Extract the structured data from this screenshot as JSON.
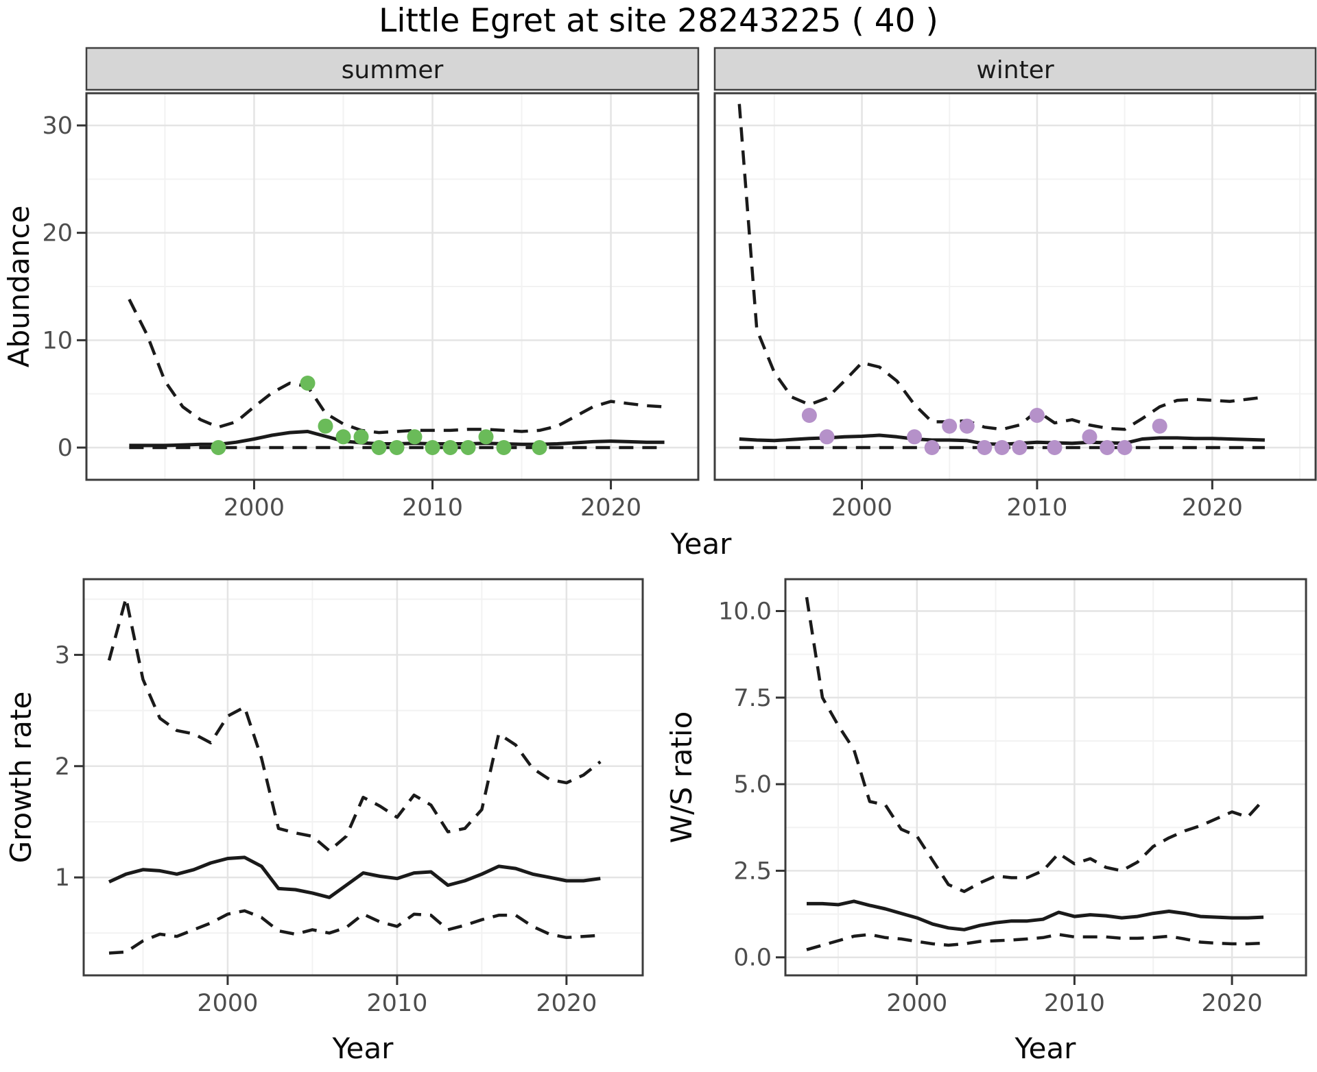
{
  "title": "Little Egret at site 28243225 ( 40 )",
  "colors": {
    "background": "#ffffff",
    "panel_bg": "#ffffff",
    "grid_major": "#e4e4e4",
    "grid_minor": "#f2f2f2",
    "panel_border": "#3c3c3c",
    "strip_bg": "#d6d6d6",
    "strip_border": "#404040",
    "line": "#1a1a1a",
    "tick": "#333333",
    "tick_label": "#4d4d4d",
    "summer_point": "#6abb59",
    "winter_point": "#b591c9"
  },
  "chart_data": [
    {
      "id": "abundance-summer",
      "type": "line",
      "facet_label": "summer",
      "ylabel": "Abundance",
      "xlabel": "Year",
      "xlim": [
        1990.6,
        2024.9
      ],
      "ylim": [
        -3,
        33
      ],
      "x_ticks": [
        2000,
        2010,
        2020
      ],
      "x_tick_labels": [
        "2000",
        "2010",
        "2020"
      ],
      "x_minor": [
        1995,
        2005,
        2015,
        2025
      ],
      "y_ticks": [
        0,
        10,
        20,
        30
      ],
      "y_tick_labels": [
        "0",
        "10",
        "20",
        "30"
      ],
      "y_minor": [
        5,
        15,
        25
      ],
      "grid": true,
      "legend": "none",
      "years": [
        1993,
        1994,
        1995,
        1996,
        1997,
        1998,
        1999,
        2000,
        2001,
        2002,
        2003,
        2004,
        2005,
        2006,
        2007,
        2008,
        2009,
        2010,
        2011,
        2012,
        2013,
        2014,
        2015,
        2016,
        2017,
        2018,
        2019,
        2020,
        2021,
        2022,
        2023
      ],
      "series": [
        {
          "name": "upper-95ci",
          "style": "dashed",
          "values": [
            13.8,
            10.5,
            6.2,
            3.8,
            2.6,
            1.9,
            2.4,
            3.8,
            5.1,
            6.0,
            5.7,
            3.2,
            2.2,
            1.6,
            1.4,
            1.5,
            1.6,
            1.6,
            1.6,
            1.7,
            1.7,
            1.6,
            1.5,
            1.6,
            2.0,
            2.9,
            3.8,
            4.3,
            4.1,
            3.9,
            3.8
          ]
        },
        {
          "name": "lower-95ci",
          "style": "dashed",
          "values": [
            0,
            0,
            0,
            0,
            0,
            0,
            0,
            0,
            0,
            0,
            0,
            0,
            0,
            0,
            0,
            0,
            0,
            0,
            0,
            0,
            0,
            0,
            0,
            0,
            0,
            0,
            0,
            0,
            0,
            0,
            0
          ]
        },
        {
          "name": "median",
          "style": "solid",
          "values": [
            0.2,
            0.2,
            0.2,
            0.25,
            0.3,
            0.3,
            0.5,
            0.8,
            1.15,
            1.4,
            1.5,
            1.05,
            0.6,
            0.45,
            0.35,
            0.35,
            0.4,
            0.35,
            0.35,
            0.35,
            0.4,
            0.35,
            0.3,
            0.3,
            0.35,
            0.45,
            0.55,
            0.6,
            0.55,
            0.5,
            0.5
          ]
        }
      ],
      "observations": {
        "name": "summer-counts",
        "color_key": "summer_point",
        "years": [
          1998,
          2003,
          2004,
          2005,
          2006,
          2007,
          2008,
          2009,
          2010,
          2011,
          2012,
          2013,
          2014,
          2016
        ],
        "values": [
          0,
          6,
          2,
          1,
          1,
          0,
          0,
          1,
          0,
          0,
          0,
          1,
          0,
          0
        ]
      }
    },
    {
      "id": "abundance-winter",
      "type": "line",
      "facet_label": "winter",
      "ylabel": "Abundance",
      "xlabel": "Year",
      "xlim": [
        1991.6,
        2025.9
      ],
      "ylim": [
        -3,
        33
      ],
      "x_ticks": [
        2000,
        2010,
        2020
      ],
      "x_tick_labels": [
        "2000",
        "2010",
        "2020"
      ],
      "x_minor": [
        1995,
        2005,
        2015,
        2025
      ],
      "y_ticks": [
        0,
        10,
        20,
        30
      ],
      "y_tick_labels": [
        "0",
        "10",
        "20",
        "30"
      ],
      "y_minor": [
        5,
        15,
        25
      ],
      "grid": true,
      "legend": "none",
      "years": [
        1993,
        1994,
        1995,
        1996,
        1997,
        1998,
        1999,
        2000,
        2001,
        2002,
        2003,
        2004,
        2005,
        2006,
        2007,
        2008,
        2009,
        2010,
        2011,
        2012,
        2013,
        2014,
        2015,
        2016,
        2017,
        2018,
        2019,
        2020,
        2021,
        2022,
        2023
      ],
      "series": [
        {
          "name": "upper-95ci",
          "style": "dashed",
          "values": [
            32,
            11,
            7.0,
            4.7,
            4.0,
            4.6,
            6.2,
            7.9,
            7.5,
            6.2,
            4.0,
            2.4,
            2.4,
            2.5,
            1.9,
            1.7,
            2.1,
            3.4,
            2.3,
            2.6,
            2.1,
            1.8,
            1.7,
            2.7,
            3.8,
            4.4,
            4.5,
            4.4,
            4.3,
            4.5,
            4.7
          ]
        },
        {
          "name": "lower-95ci",
          "style": "dashed",
          "values": [
            0,
            0,
            0,
            0,
            0,
            0,
            0,
            0,
            0,
            0,
            0,
            0,
            0,
            0,
            0,
            0,
            0,
            0,
            0,
            0,
            0,
            0,
            0,
            0,
            0,
            0,
            0,
            0,
            0,
            0,
            0
          ]
        },
        {
          "name": "median",
          "style": "solid",
          "values": [
            0.8,
            0.7,
            0.65,
            0.75,
            0.85,
            0.9,
            1.0,
            1.05,
            1.15,
            1.0,
            0.8,
            0.7,
            0.7,
            0.65,
            0.35,
            0.3,
            0.4,
            0.5,
            0.45,
            0.4,
            0.5,
            0.45,
            0.4,
            0.8,
            0.9,
            0.9,
            0.85,
            0.85,
            0.8,
            0.75,
            0.7
          ]
        }
      ],
      "observations": {
        "name": "winter-counts",
        "color_key": "winter_point",
        "years": [
          1997,
          1998,
          2003,
          2004,
          2005,
          2006,
          2007,
          2008,
          2009,
          2010,
          2011,
          2013,
          2014,
          2015,
          2017
        ],
        "values": [
          3,
          1,
          1,
          0,
          2,
          2,
          0,
          0,
          0,
          3,
          0,
          1,
          0,
          0,
          2
        ]
      }
    },
    {
      "id": "growth-rate",
      "type": "line",
      "facet_label": "",
      "ylabel": "Growth rate",
      "xlabel": "Year",
      "xlim": [
        1991.5,
        2024.5
      ],
      "ylim": [
        0.12,
        3.68
      ],
      "x_ticks": [
        2000,
        2010,
        2020
      ],
      "x_tick_labels": [
        "2000",
        "2010",
        "2020"
      ],
      "x_minor": [
        1995,
        2005,
        2015
      ],
      "y_ticks": [
        1,
        2,
        3
      ],
      "y_tick_labels": [
        "1",
        "2",
        "3"
      ],
      "y_minor": [
        0.5,
        1.5,
        2.5,
        3.5
      ],
      "grid": true,
      "legend": "none",
      "years": [
        1993,
        1994,
        1995,
        1996,
        1997,
        1998,
        1999,
        2000,
        2001,
        2002,
        2003,
        2004,
        2005,
        2006,
        2007,
        2008,
        2009,
        2010,
        2011,
        2012,
        2013,
        2014,
        2015,
        2016,
        2017,
        2018,
        2019,
        2020,
        2021,
        2022
      ],
      "series": [
        {
          "name": "upper-95ci",
          "style": "dashed",
          "values": [
            2.95,
            3.51,
            2.78,
            2.43,
            2.32,
            2.29,
            2.21,
            2.45,
            2.53,
            2.07,
            1.44,
            1.4,
            1.37,
            1.24,
            1.37,
            1.72,
            1.64,
            1.54,
            1.74,
            1.65,
            1.41,
            1.44,
            1.61,
            2.29,
            2.19,
            1.98,
            1.88,
            1.85,
            1.92,
            2.04
          ]
        },
        {
          "name": "lower-95ci",
          "style": "dashed",
          "values": [
            0.32,
            0.33,
            0.43,
            0.49,
            0.47,
            0.53,
            0.59,
            0.67,
            0.7,
            0.64,
            0.52,
            0.49,
            0.53,
            0.5,
            0.55,
            0.67,
            0.6,
            0.56,
            0.67,
            0.66,
            0.53,
            0.57,
            0.62,
            0.66,
            0.66,
            0.56,
            0.49,
            0.46,
            0.47,
            0.48
          ]
        },
        {
          "name": "median",
          "style": "solid",
          "values": [
            0.96,
            1.03,
            1.07,
            1.06,
            1.03,
            1.07,
            1.13,
            1.17,
            1.18,
            1.1,
            0.9,
            0.89,
            0.86,
            0.82,
            0.93,
            1.04,
            1.01,
            0.99,
            1.04,
            1.05,
            0.93,
            0.97,
            1.03,
            1.1,
            1.08,
            1.03,
            1.0,
            0.97,
            0.97,
            0.99
          ]
        }
      ],
      "observations": null
    },
    {
      "id": "ws-ratio",
      "type": "line",
      "facet_label": "",
      "ylabel": "W/S ratio",
      "xlabel": "Year",
      "xlim": [
        1991.65,
        2024.7
      ],
      "ylim": [
        -0.52,
        10.92
      ],
      "x_ticks": [
        2000,
        2010,
        2020
      ],
      "x_tick_labels": [
        "2000",
        "2010",
        "2020"
      ],
      "x_minor": [
        1995,
        2005,
        2015
      ],
      "y_ticks": [
        0,
        2.5,
        5,
        7.5,
        10
      ],
      "y_tick_labels": [
        "0.0",
        "2.5",
        "5.0",
        "7.5",
        "10.0"
      ],
      "y_minor": [
        1.25,
        3.75,
        6.25,
        8.75
      ],
      "grid": true,
      "legend": "none",
      "years": [
        1993,
        1994,
        1995,
        1996,
        1997,
        1998,
        1999,
        2000,
        2001,
        2002,
        2003,
        2004,
        2005,
        2006,
        2007,
        2008,
        2009,
        2010,
        2011,
        2012,
        2013,
        2014,
        2015,
        2016,
        2017,
        2018,
        2019,
        2020,
        2021,
        2022
      ],
      "series": [
        {
          "name": "upper-95ci",
          "style": "dashed",
          "values": [
            10.4,
            7.5,
            6.7,
            6.0,
            4.5,
            4.4,
            3.7,
            3.5,
            2.8,
            2.1,
            1.9,
            2.15,
            2.35,
            2.3,
            2.3,
            2.5,
            3.0,
            2.7,
            2.85,
            2.6,
            2.5,
            2.75,
            3.2,
            3.45,
            3.65,
            3.8,
            4.0,
            4.2,
            4.05,
            4.55
          ]
        },
        {
          "name": "lower-95ci",
          "style": "dashed",
          "values": [
            0.22,
            0.35,
            0.48,
            0.61,
            0.66,
            0.57,
            0.53,
            0.46,
            0.39,
            0.35,
            0.39,
            0.46,
            0.48,
            0.5,
            0.53,
            0.57,
            0.66,
            0.59,
            0.59,
            0.59,
            0.55,
            0.55,
            0.57,
            0.61,
            0.53,
            0.44,
            0.41,
            0.39,
            0.39,
            0.41
          ]
        },
        {
          "name": "median",
          "style": "solid",
          "values": [
            1.55,
            1.55,
            1.52,
            1.62,
            1.5,
            1.4,
            1.27,
            1.14,
            0.96,
            0.85,
            0.8,
            0.92,
            1.0,
            1.05,
            1.05,
            1.1,
            1.3,
            1.18,
            1.23,
            1.2,
            1.14,
            1.18,
            1.27,
            1.33,
            1.27,
            1.18,
            1.16,
            1.14,
            1.14,
            1.16
          ]
        }
      ],
      "observations": null
    }
  ]
}
